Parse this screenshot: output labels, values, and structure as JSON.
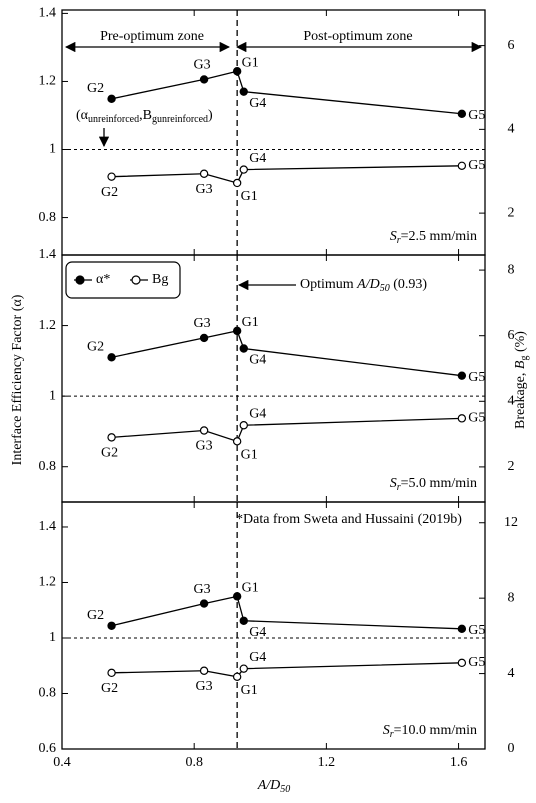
{
  "chart_data": [
    {
      "type": "line",
      "xlim": [
        0.4,
        1.68
      ],
      "xticks": [
        0.4,
        0.8,
        1.2,
        1.6
      ],
      "ylim": [
        0.69,
        1.41
      ],
      "yticks": [
        0.8,
        1,
        1.2,
        1.4
      ],
      "y2lim": [
        1,
        6.85
      ],
      "y2ticks": [
        2,
        4,
        6
      ],
      "categories": [
        "G2",
        "G3",
        "G1",
        "G4",
        "G5"
      ],
      "x": [
        0.55,
        0.83,
        0.93,
        0.95,
        1.61
      ],
      "series": [
        {
          "color": "#000000",
          "marker": "filled",
          "values": [
            1.149,
            1.206,
            1.23,
            1.17,
            1.105
          ]
        },
        {
          "color": "#000000",
          "marker": "open",
          "axis": "y2",
          "values": [
            2.87,
            2.94,
            2.72,
            3.04,
            3.13
          ]
        }
      ],
      "ref_y": 1,
      "ref_x": 0.93,
      "zone_left": "Pre-optimum zone",
      "zone_right": "Post-optimum zone",
      "ref_label": [
        "(α",
        "unreinforced",
        ",B",
        "gunreinforced",
        ")"
      ],
      "condition": [
        "S",
        "r",
        "=2.5 mm/min"
      ]
    },
    {
      "type": "line",
      "xlim": [
        0.4,
        1.68
      ],
      "xticks": [
        0.4,
        0.8,
        1.2,
        1.6
      ],
      "ylim": [
        0.7,
        1.4
      ],
      "yticks": [
        0.8,
        1,
        1.2,
        1.4
      ],
      "y2lim": [
        0.93,
        8.46
      ],
      "y2ticks": [
        2,
        4,
        6,
        8
      ],
      "categories": [
        "G2",
        "G3",
        "G1",
        "G4",
        "G5"
      ],
      "x": [
        0.55,
        0.83,
        0.93,
        0.95,
        1.61
      ],
      "series": [
        {
          "name": "α*",
          "color": "#000000",
          "marker": "filled",
          "values": [
            1.11,
            1.165,
            1.185,
            1.135,
            1.058
          ]
        },
        {
          "name": "Bg",
          "color": "#000000",
          "marker": "open",
          "axis": "y2",
          "values": [
            2.9,
            3.11,
            2.78,
            3.27,
            3.48
          ]
        }
      ],
      "ref_y": 1,
      "ref_x": 0.93,
      "ylabel": "Interface Efficiency Factor (α)",
      "y2label": [
        "Breakage, ",
        "B",
        "g",
        " (%)"
      ],
      "optimum": [
        "Optimum ",
        "A/D",
        "50",
        " (0.93)"
      ],
      "condition": [
        "S",
        "r",
        "=5.0 mm/min"
      ]
    },
    {
      "type": "line",
      "xlim": [
        0.4,
        1.68
      ],
      "xticks": [
        0.4,
        0.8,
        1.2,
        1.6
      ],
      "ylim": [
        0.6,
        1.49
      ],
      "yticks": [
        0.6,
        0.8,
        1,
        1.2,
        1.4
      ],
      "y2lim": [
        0,
        13.1
      ],
      "y2ticks": [
        0,
        4,
        8,
        12
      ],
      "categories": [
        "G2",
        "G3",
        "G1",
        "G4",
        "G5"
      ],
      "x": [
        0.55,
        0.83,
        0.93,
        0.95,
        1.61
      ],
      "series": [
        {
          "color": "#000000",
          "marker": "filled",
          "values": [
            1.044,
            1.124,
            1.15,
            1.062,
            1.033
          ]
        },
        {
          "color": "#000000",
          "marker": "open",
          "axis": "y2",
          "values": [
            4.04,
            4.15,
            3.83,
            4.26,
            4.57
          ]
        }
      ],
      "ref_y": 1,
      "ref_x": 0.93,
      "xlabel": [
        "A/D",
        "50"
      ],
      "note": "*Data from Sweta and Hussaini (2019b)",
      "condition": [
        "S",
        "r",
        "=10.0 mm/min"
      ]
    }
  ]
}
